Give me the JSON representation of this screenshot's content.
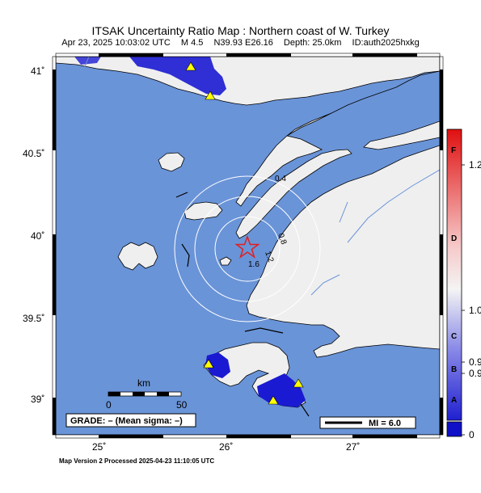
{
  "header": {
    "title": "ITSAK Uncertainty Ratio Map : Northern coast of W. Turkey",
    "date": "Apr 23, 2025 10:03:02 UTC",
    "magnitude": "M 4.5",
    "location": "N39.93 E26.16",
    "depth": "Depth: 25.0km",
    "event_id": "ID:auth2025hxkg"
  },
  "axes": {
    "lat_labels": [
      "41˚",
      "40.5˚",
      "40˚",
      "39.5˚",
      "39˚"
    ],
    "lon_labels": [
      "25˚",
      "26˚",
      "27˚"
    ]
  },
  "contours": [
    "0.4",
    "0.8",
    "1.2",
    "1.6"
  ],
  "scale_bar": {
    "unit": "km",
    "start": "0",
    "end": "50"
  },
  "grade_box": "GRADE: – (Mean sigma: –)",
  "mi_legend": "MI = 6.0",
  "colorbar": {
    "letters": [
      "F",
      "D",
      "C",
      "B",
      "A"
    ],
    "values": [
      "1.2",
      "1.0",
      "0.9",
      "0.9",
      "0"
    ]
  },
  "colors": {
    "sea": "#6a94d8",
    "land": "#efefef",
    "high_uncertainty": "#1a1ad2",
    "station": "#ffff00",
    "epicenter": "#e02020"
  },
  "footer": "Map Version 2 Processed 2025-04-23 11:10:05 UTC"
}
